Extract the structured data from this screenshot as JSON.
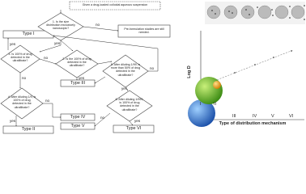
{
  "flowchart": {
    "start": "Given a drug-loaded colloidal aqueous suspension",
    "questions": [
      "1. Is the size distribution exclusively nanoscopic?",
      "3. Is 100% of drug detected in the ultrafiltrate?",
      "2. Is the 100% of drug detected in the ultrafiltrate?",
      "4. After diluting 1/9, is 100% of drug detected in the ultrafiltrate?",
      "5. After diluting 1/99, is more than 50% of drug detected in the ultrafiltrate?",
      "6. After diluting 1/999, is 100% of drug detected in the ultrafiltrate?"
    ],
    "preformulation": "Pre-formulation studies are still needed.",
    "types": [
      "Type I",
      "Type II",
      "Type III",
      "Type IV",
      "Type V",
      "Type VI"
    ],
    "edge_labels": [
      "no",
      "yes",
      "yes",
      "no",
      "yes",
      "no",
      "yes",
      "no",
      "yes",
      "no",
      "no",
      "yes"
    ]
  },
  "chart": {
    "y_label": "Log D",
    "x_label": "Type of distribution mechanism",
    "x_ticks": [
      "I",
      "II",
      "III",
      "IV",
      "V",
      "VI"
    ]
  }
}
